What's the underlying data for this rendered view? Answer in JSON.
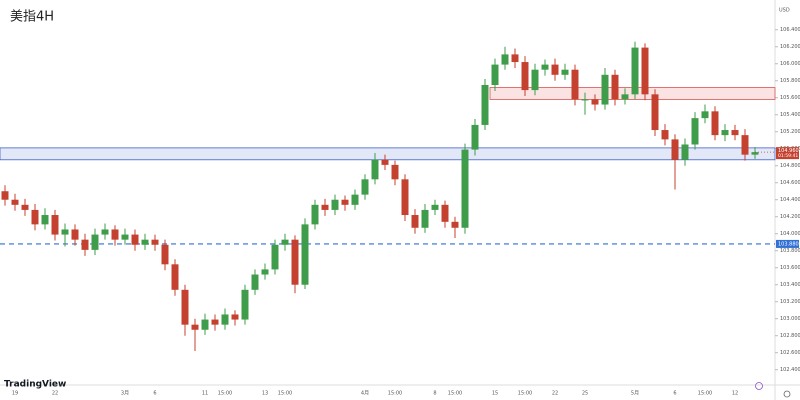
{
  "chart_data": {
    "type": "candlestick",
    "title": "美指4H",
    "currency": "USD",
    "logo": "TradingView",
    "categories": [
      null,
      "19",
      null,
      null,
      null,
      "22",
      null,
      null,
      null,
      null,
      null,
      null,
      "3月",
      null,
      null,
      "6",
      null,
      null,
      null,
      null,
      "11",
      null,
      "15:00",
      null,
      null,
      null,
      "13",
      null,
      "15:00",
      null,
      null,
      null,
      null,
      null,
      null,
      null,
      "4月",
      null,
      null,
      "15:00",
      null,
      null,
      null,
      "8",
      null,
      "15:00",
      null,
      null,
      null,
      "15",
      null,
      null,
      "15:00",
      null,
      null,
      "22",
      null,
      null,
      "25",
      null,
      null,
      null,
      null,
      "5月",
      null,
      null,
      null,
      "6",
      null,
      null,
      "15:00",
      null,
      null,
      "12",
      null,
      null
    ],
    "open": [
      104.5,
      104.4,
      104.34,
      104.28,
      104.11,
      104.22,
      103.99,
      104.05,
      103.93,
      103.81,
      103.99,
      104.05,
      103.93,
      103.99,
      103.87,
      103.93,
      103.87,
      103.64,
      103.34,
      102.93,
      102.87,
      102.99,
      102.93,
      103.05,
      102.99,
      103.34,
      103.52,
      103.58,
      103.87,
      103.93,
      103.4,
      104.11,
      104.34,
      104.28,
      104.4,
      104.34,
      104.46,
      104.64,
      104.87,
      104.81,
      104.64,
      104.22,
      104.07,
      104.28,
      104.34,
      104.14,
      104.07,
      104.99,
      105.28,
      105.75,
      105.99,
      106.11,
      106.02,
      105.69,
      105.93,
      105.99,
      105.87,
      105.93,
      105.58,
      105.58,
      105.52,
      105.87,
      105.58,
      105.64,
      106.19,
      105.64,
      105.22,
      105.11,
      104.87,
      105.05,
      105.36,
      105.44,
      105.16,
      105.22,
      105.16,
      104.93
    ],
    "high": [
      104.57,
      104.47,
      104.41,
      104.35,
      104.3,
      104.28,
      104.12,
      104.11,
      104.0,
      104.06,
      104.12,
      104.1,
      104.06,
      104.05,
      104.0,
      103.99,
      103.93,
      103.7,
      103.4,
      103.0,
      103.06,
      103.05,
      103.12,
      103.1,
      103.4,
      103.58,
      103.65,
      103.93,
      104.0,
      103.98,
      104.18,
      104.4,
      104.41,
      104.46,
      104.45,
      104.52,
      104.7,
      104.95,
      104.93,
      104.86,
      104.7,
      104.29,
      104.35,
      104.4,
      104.39,
      104.2,
      105.06,
      105.35,
      105.82,
      106.06,
      106.2,
      106.18,
      106.09,
      106.0,
      106.05,
      106.06,
      106.0,
      105.99,
      105.66,
      105.64,
      105.95,
      105.93,
      105.71,
      106.26,
      106.24,
      105.7,
      105.29,
      105.17,
      105.12,
      105.43,
      105.52,
      105.5,
      105.29,
      105.28,
      105.23,
      105.02
    ],
    "low": [
      104.33,
      104.27,
      104.21,
      104.04,
      104.05,
      103.92,
      103.85,
      103.86,
      103.74,
      103.75,
      103.93,
      103.86,
      103.87,
      103.8,
      103.81,
      103.8,
      103.57,
      103.27,
      102.8,
      102.62,
      102.81,
      102.86,
      102.87,
      102.92,
      102.93,
      103.28,
      103.46,
      103.52,
      103.8,
      103.3,
      103.35,
      104.05,
      104.21,
      104.22,
      104.27,
      104.28,
      104.4,
      104.58,
      104.75,
      104.57,
      104.15,
      104.0,
      104.01,
      104.22,
      104.07,
      103.95,
      104.0,
      104.92,
      105.22,
      105.68,
      105.93,
      105.95,
      105.62,
      105.63,
      105.86,
      105.8,
      105.81,
      105.51,
      105.4,
      105.45,
      105.46,
      105.51,
      105.52,
      105.58,
      105.57,
      105.15,
      105.04,
      104.52,
      104.8,
      104.99,
      105.3,
      105.1,
      105.09,
      105.1,
      104.86,
      104.88
    ],
    "close": [
      104.4,
      104.34,
      104.28,
      104.11,
      104.22,
      103.99,
      104.05,
      103.93,
      103.81,
      103.99,
      104.05,
      103.93,
      103.99,
      103.87,
      103.93,
      103.87,
      103.64,
      103.34,
      102.93,
      102.87,
      102.99,
      102.93,
      103.05,
      102.99,
      103.34,
      103.52,
      103.58,
      103.87,
      103.93,
      103.4,
      104.11,
      104.34,
      104.28,
      104.4,
      104.34,
      104.46,
      104.64,
      104.87,
      104.81,
      104.64,
      104.22,
      104.07,
      104.28,
      104.34,
      104.14,
      104.07,
      104.99,
      105.28,
      105.75,
      105.99,
      106.11,
      106.02,
      105.69,
      105.93,
      105.99,
      105.87,
      105.93,
      105.58,
      105.58,
      105.52,
      105.87,
      105.58,
      105.64,
      106.19,
      105.64,
      105.22,
      105.11,
      104.87,
      105.05,
      105.36,
      105.44,
      105.16,
      105.22,
      105.16,
      104.93,
      104.96
    ],
    "up_color": "#3f9c4b",
    "down_color": "#c4412f",
    "ylim": [
      102.22,
      106.75
    ],
    "yticks": [
      {
        "value": 102.4,
        "label": "102.400"
      },
      {
        "value": 102.6,
        "label": "102.600"
      },
      {
        "value": 102.8,
        "label": "102.800"
      },
      {
        "value": 103.0,
        "label": "103.000"
      },
      {
        "value": 103.2,
        "label": "103.200"
      },
      {
        "value": 103.4,
        "label": "103.400"
      },
      {
        "value": 103.6,
        "label": "103.600"
      },
      {
        "value": 103.8,
        "label": "103.800"
      },
      {
        "value": 104.0,
        "label": "104.000"
      },
      {
        "value": 104.2,
        "label": "104.200"
      },
      {
        "value": 104.4,
        "label": "104.400"
      },
      {
        "value": 104.6,
        "label": "104.600"
      },
      {
        "value": 104.8,
        "label": "104.800"
      },
      {
        "value": 105.0,
        "label": "105.000"
      },
      {
        "value": 105.2,
        "label": "105.200"
      },
      {
        "value": 105.4,
        "label": "105.400"
      },
      {
        "value": 105.6,
        "label": "105.600"
      },
      {
        "value": 105.8,
        "label": "105.800"
      },
      {
        "value": 106.0,
        "label": "106.000"
      },
      {
        "value": 106.2,
        "label": "106.200"
      },
      {
        "value": 106.4,
        "label": "106.400"
      }
    ],
    "zones": [
      {
        "top": 105.72,
        "bottom": 105.58,
        "start": 49,
        "fill": "#fbe3e3",
        "stroke": "#d9534f"
      },
      {
        "top": 105.01,
        "bottom": 104.87,
        "start": 0,
        "fill": "#e3e8f8",
        "stroke": "#3f5fc9"
      }
    ],
    "level": {
      "value": 103.88,
      "label": "103.880",
      "color": "#2f6fd6"
    },
    "last_price": {
      "value": 104.96,
      "label": "104.960",
      "countdown": "01:59:41",
      "color": "#c4412f"
    }
  }
}
